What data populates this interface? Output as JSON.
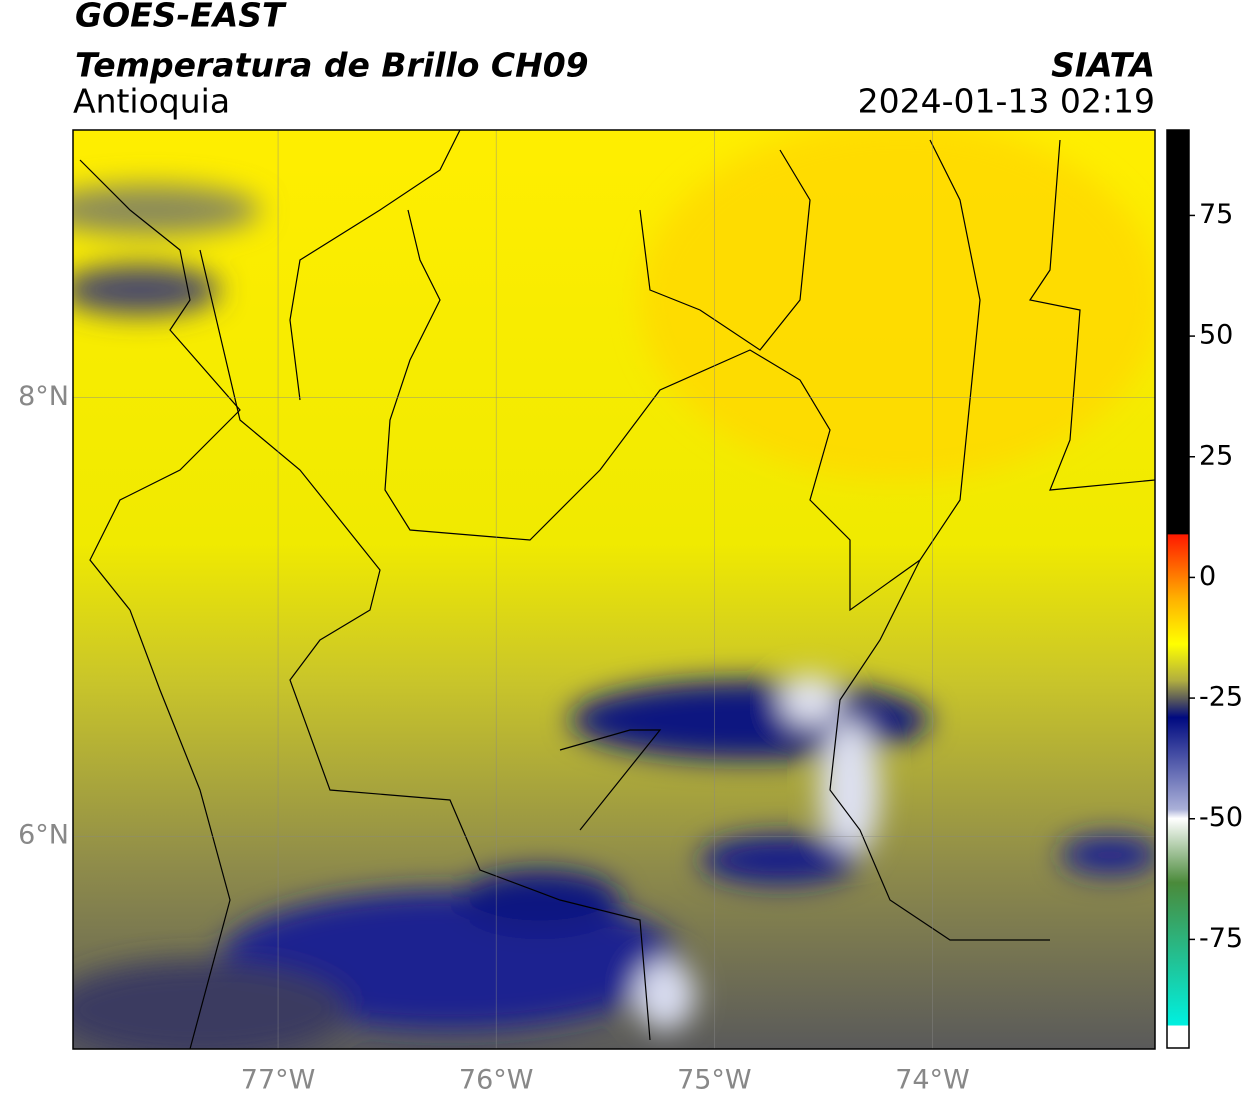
{
  "header": {
    "title": "GOES-EAST",
    "subtitle": "Temperatura de Brillo CH09",
    "region": "Antioquia",
    "source": "SIATA",
    "datetime": "2024-01-13 02:19"
  },
  "map": {
    "xlim": [
      -77.94,
      -72.98
    ],
    "ylim": [
      5.03,
      9.22
    ],
    "lon_ticks": [
      {
        "value": -77,
        "label": "77°W"
      },
      {
        "value": -76,
        "label": "76°W"
      },
      {
        "value": -75,
        "label": "75°W"
      },
      {
        "value": -74,
        "label": "74°W"
      }
    ],
    "lat_ticks": [
      {
        "value": 8,
        "label": "8°N"
      },
      {
        "value": 6,
        "label": "6°N"
      }
    ]
  },
  "colorbar": {
    "lim": [
      -97.5,
      92.7
    ],
    "ticks": [
      75,
      50,
      25,
      0,
      -25,
      -50,
      -75
    ]
  }
}
